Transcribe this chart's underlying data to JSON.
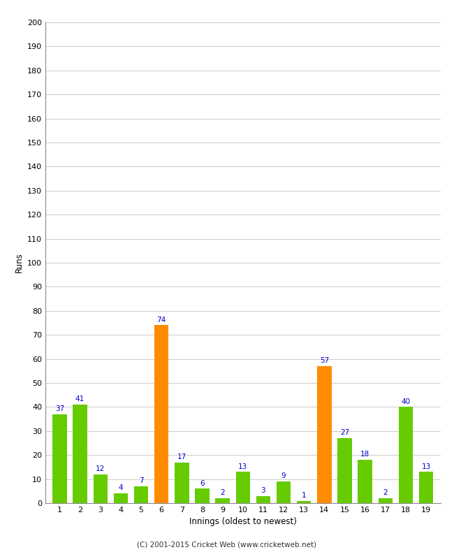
{
  "innings": [
    1,
    2,
    3,
    4,
    5,
    6,
    7,
    8,
    9,
    10,
    11,
    12,
    13,
    14,
    15,
    16,
    17,
    18,
    19
  ],
  "runs": [
    37,
    41,
    12,
    4,
    7,
    74,
    17,
    6,
    2,
    13,
    3,
    9,
    1,
    57,
    27,
    18,
    2,
    40,
    13
  ],
  "colors": [
    "#66cc00",
    "#66cc00",
    "#66cc00",
    "#66cc00",
    "#66cc00",
    "#ff8c00",
    "#66cc00",
    "#66cc00",
    "#66cc00",
    "#66cc00",
    "#66cc00",
    "#66cc00",
    "#66cc00",
    "#ff8c00",
    "#66cc00",
    "#66cc00",
    "#66cc00",
    "#66cc00",
    "#66cc00"
  ],
  "xlabel": "Innings (oldest to newest)",
  "ylabel": "Runs",
  "ylim": [
    0,
    200
  ],
  "yticks": [
    0,
    10,
    20,
    30,
    40,
    50,
    60,
    70,
    80,
    90,
    100,
    110,
    120,
    130,
    140,
    150,
    160,
    170,
    180,
    190,
    200
  ],
  "label_color": "#0000cc",
  "background_color": "#ffffff",
  "grid_color": "#cccccc",
  "footer": "(C) 2001-2015 Cricket Web (www.cricketweb.net)"
}
